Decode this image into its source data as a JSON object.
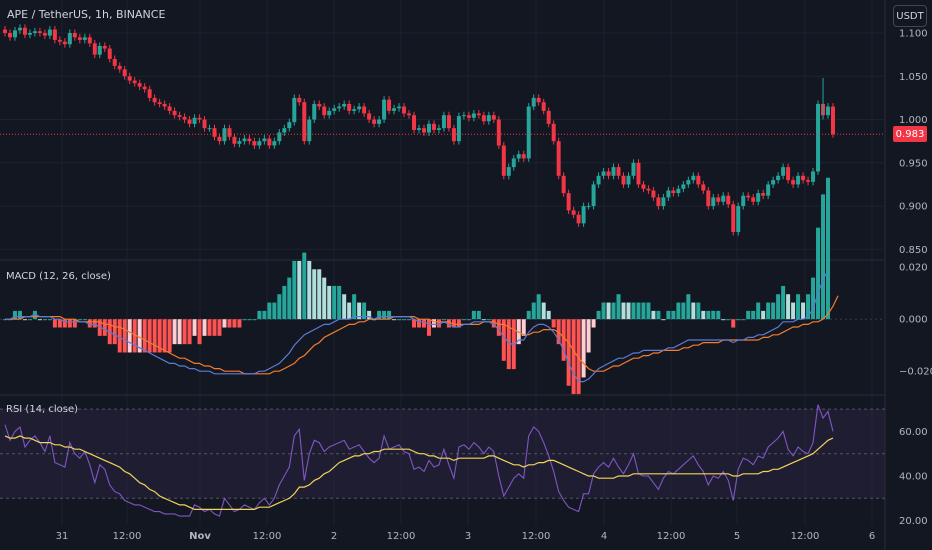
{
  "header": {
    "symbol": "APE / TetherUS, 1h, BINANCE",
    "currency_button": "USDT"
  },
  "colors": {
    "background": "#131722",
    "up": "#26a69a",
    "down": "#f23645",
    "grid": "#1e222d",
    "macd_line": "#5b7bd5",
    "signal_line": "#f57c2a",
    "hist_pos_strong": "#26a69a",
    "hist_pos_weak": "#b2dfdb",
    "hist_neg_strong": "#ff5252",
    "hist_neg_weak": "#ffcdd2",
    "rsi_line": "#7e57c2",
    "rsi_ma": "#f0d35a",
    "rsi_band": "#2a2240"
  },
  "price": {
    "current": "0.983",
    "axis_labels": [
      "1.100",
      "1.050",
      "1.000",
      "0.950",
      "0.900",
      "0.850"
    ]
  },
  "macd": {
    "title": "MACD (12, 26, close)",
    "axis_labels": [
      "0.020",
      "0.000",
      "−0.020"
    ]
  },
  "rsi": {
    "title": "RSI (14, close)",
    "axis_labels": [
      "60.00",
      "40.00",
      "20.00"
    ]
  },
  "time_axis": [
    "31",
    "12:00",
    "Nov",
    "12:00",
    "2",
    "12:00",
    "3",
    "12:00",
    "4",
    "12:00",
    "5",
    "12:00",
    "6"
  ],
  "chart_data": [
    {
      "type": "candlestick",
      "title": "APE / TetherUS, 1h, BINANCE",
      "ylim": [
        0.84,
        1.115
      ],
      "close": [
        1.1,
        1.095,
        1.103,
        1.106,
        1.098,
        1.1,
        1.102,
        1.1,
        1.097,
        1.104,
        1.092,
        1.09,
        1.087,
        1.1,
        1.095,
        1.092,
        1.095,
        1.088,
        1.075,
        1.085,
        1.082,
        1.07,
        1.062,
        1.058,
        1.05,
        1.045,
        1.042,
        1.038,
        1.035,
        1.025,
        1.02,
        1.018,
        1.015,
        1.01,
        1.005,
        1.003,
        1.0,
        0.995,
        1.002,
        1.0,
        0.99,
        0.99,
        0.98,
        0.975,
        0.99,
        0.98,
        0.972,
        0.975,
        0.978,
        0.975,
        0.97,
        0.975,
        0.978,
        0.97,
        0.975,
        0.985,
        0.99,
        0.997,
        1.025,
        1.02,
        0.975,
        1.0,
        1.018,
        1.015,
        1.005,
        1.01,
        1.013,
        1.015,
        1.018,
        1.01,
        1.012,
        1.015,
        1.007,
        1.0,
        0.995,
        1.0,
        1.023,
        1.01,
        1.013,
        1.015,
        1.007,
        1.005,
        0.988,
        0.99,
        0.985,
        0.995,
        0.988,
        0.99,
        1.005,
        0.99,
        0.975,
        1.004,
        1.005,
        1.002,
        1.007,
        1.005,
        0.998,
        1.005,
        1.0,
        0.97,
        0.935,
        0.945,
        0.955,
        0.96,
        0.955,
        1.015,
        1.025,
        1.02,
        1.01,
        0.995,
        0.975,
        0.935,
        0.915,
        0.895,
        0.89,
        0.88,
        0.9,
        0.9,
        0.925,
        0.935,
        0.94,
        0.935,
        0.945,
        0.935,
        0.925,
        0.935,
        0.95,
        0.925,
        0.92,
        0.918,
        0.91,
        0.9,
        0.91,
        0.918,
        0.915,
        0.92,
        0.925,
        0.93,
        0.935,
        0.925,
        0.918,
        0.9,
        0.91,
        0.905,
        0.912,
        0.902,
        0.87,
        0.9,
        0.912,
        0.91,
        0.905,
        0.915,
        0.912,
        0.925,
        0.93,
        0.935,
        0.945,
        0.93,
        0.925,
        0.935,
        0.93,
        0.928,
        0.94,
        1.018,
        1.005,
        1.015,
        0.983
      ]
    },
    {
      "type": "line",
      "title": "MACD (12, 26, close)",
      "ylim": [
        -0.028,
        0.022
      ],
      "series": [
        {
          "name": "MACD",
          "values": [
            0.0,
            0.0,
            0.001,
            0.001,
            0.001,
            0.001,
            0.002,
            0.001,
            0.001,
            0.001,
            0.0,
            0.0,
            -0.001,
            -0.001,
            -0.001,
            -0.001,
            -0.001,
            -0.002,
            -0.002,
            -0.003,
            -0.004,
            -0.005,
            -0.006,
            -0.007,
            -0.008,
            -0.009,
            -0.01,
            -0.011,
            -0.012,
            -0.013,
            -0.014,
            -0.015,
            -0.016,
            -0.017,
            -0.017,
            -0.018,
            -0.018,
            -0.019,
            -0.019,
            -0.02,
            -0.02,
            -0.02,
            -0.021,
            -0.021,
            -0.021,
            -0.021,
            -0.021,
            -0.021,
            -0.021,
            -0.021,
            -0.021,
            -0.02,
            -0.02,
            -0.019,
            -0.018,
            -0.017,
            -0.015,
            -0.013,
            -0.01,
            -0.008,
            -0.006,
            -0.005,
            -0.004,
            -0.003,
            -0.002,
            -0.002,
            -0.001,
            0.0,
            0.0,
            0.0,
            0.001,
            0.001,
            0.001,
            0.001,
            0.0,
            0.001,
            0.001,
            0.001,
            0.001,
            0.001,
            0.001,
            0.001,
            0.0,
            -0.001,
            -0.001,
            -0.002,
            -0.002,
            -0.002,
            -0.001,
            -0.002,
            -0.003,
            -0.003,
            -0.002,
            -0.002,
            -0.001,
            -0.001,
            -0.001,
            -0.001,
            -0.002,
            -0.004,
            -0.007,
            -0.009,
            -0.01,
            -0.008,
            -0.008,
            -0.005,
            -0.003,
            -0.002,
            -0.002,
            -0.003,
            -0.005,
            -0.008,
            -0.012,
            -0.017,
            -0.021,
            -0.024,
            -0.024,
            -0.023,
            -0.021,
            -0.019,
            -0.018,
            -0.017,
            -0.016,
            -0.015,
            -0.015,
            -0.014,
            -0.013,
            -0.013,
            -0.012,
            -0.012,
            -0.012,
            -0.012,
            -0.012,
            -0.011,
            -0.011,
            -0.01,
            -0.009,
            -0.008,
            -0.008,
            -0.008,
            -0.008,
            -0.008,
            -0.008,
            -0.008,
            -0.008,
            -0.008,
            -0.009,
            -0.008,
            -0.008,
            -0.007,
            -0.007,
            -0.006,
            -0.006,
            -0.005,
            -0.004,
            -0.003,
            -0.001,
            -0.001,
            -0.001,
            0.0,
            0.0,
            0.001,
            0.004,
            0.01,
            0.015,
            0.019
          ]
        },
        {
          "name": "Signal",
          "values": [
            0.0,
            0.0,
            0.0,
            0.0,
            0.001,
            0.001,
            0.001,
            0.001,
            0.001,
            0.001,
            0.001,
            0.001,
            0.0,
            0.0,
            0.0,
            -0.001,
            -0.001,
            -0.001,
            -0.001,
            -0.001,
            -0.002,
            -0.002,
            -0.003,
            -0.003,
            -0.004,
            -0.005,
            -0.006,
            -0.007,
            -0.008,
            -0.009,
            -0.01,
            -0.011,
            -0.012,
            -0.013,
            -0.014,
            -0.015,
            -0.015,
            -0.016,
            -0.017,
            -0.017,
            -0.018,
            -0.018,
            -0.019,
            -0.019,
            -0.02,
            -0.02,
            -0.02,
            -0.02,
            -0.021,
            -0.021,
            -0.021,
            -0.021,
            -0.021,
            -0.021,
            -0.02,
            -0.02,
            -0.019,
            -0.018,
            -0.017,
            -0.015,
            -0.014,
            -0.012,
            -0.01,
            -0.009,
            -0.007,
            -0.006,
            -0.005,
            -0.004,
            -0.003,
            -0.002,
            -0.002,
            -0.001,
            -0.001,
            0.0,
            0.0,
            0.0,
            0.0,
            0.0,
            0.001,
            0.001,
            0.001,
            0.001,
            0.001,
            0.0,
            0.0,
            0.0,
            -0.001,
            -0.001,
            -0.001,
            -0.001,
            -0.002,
            -0.002,
            -0.002,
            -0.002,
            -0.002,
            -0.002,
            -0.001,
            -0.001,
            -0.001,
            -0.002,
            -0.002,
            -0.003,
            -0.004,
            -0.005,
            -0.006,
            -0.006,
            -0.005,
            -0.005,
            -0.004,
            -0.004,
            -0.004,
            -0.005,
            -0.007,
            -0.009,
            -0.012,
            -0.015,
            -0.017,
            -0.019,
            -0.02,
            -0.02,
            -0.02,
            -0.019,
            -0.018,
            -0.018,
            -0.017,
            -0.016,
            -0.015,
            -0.015,
            -0.014,
            -0.014,
            -0.013,
            -0.013,
            -0.012,
            -0.012,
            -0.012,
            -0.012,
            -0.011,
            -0.011,
            -0.01,
            -0.01,
            -0.009,
            -0.009,
            -0.009,
            -0.009,
            -0.008,
            -0.008,
            -0.008,
            -0.008,
            -0.008,
            -0.008,
            -0.008,
            -0.008,
            -0.007,
            -0.007,
            -0.006,
            -0.006,
            -0.005,
            -0.004,
            -0.003,
            -0.003,
            -0.002,
            -0.002,
            -0.001,
            -0.001,
            0.0,
            0.002,
            0.005,
            0.009
          ]
        }
      ]
    },
    {
      "type": "line",
      "title": "RSI (14, close)",
      "ylim": [
        18,
        75
      ],
      "bands": [
        70,
        50,
        30
      ],
      "series": [
        {
          "name": "RSI",
          "values": [
            63,
            56,
            60,
            62,
            53,
            56,
            58,
            55,
            51,
            58,
            46,
            45,
            44,
            55,
            50,
            48,
            51,
            45,
            37,
            45,
            43,
            36,
            33,
            32,
            29,
            28,
            27,
            27,
            26,
            25,
            24,
            24,
            23,
            23,
            23,
            22,
            22,
            22,
            27,
            26,
            24,
            25,
            23,
            22,
            30,
            27,
            24,
            25,
            27,
            26,
            25,
            28,
            30,
            27,
            30,
            36,
            40,
            44,
            58,
            61,
            38,
            50,
            56,
            55,
            51,
            53,
            54,
            55,
            56,
            52,
            53,
            54,
            51,
            48,
            46,
            48,
            58,
            52,
            53,
            54,
            51,
            50,
            43,
            44,
            42,
            47,
            44,
            45,
            52,
            45,
            39,
            53,
            54,
            52,
            55,
            53,
            50,
            53,
            51,
            40,
            31,
            35,
            39,
            41,
            39,
            58,
            62,
            60,
            55,
            49,
            42,
            33,
            29,
            26,
            25,
            24,
            32,
            32,
            41,
            44,
            46,
            44,
            48,
            44,
            41,
            45,
            50,
            41,
            40,
            40,
            37,
            34,
            39,
            42,
            41,
            43,
            45,
            47,
            49,
            45,
            42,
            36,
            40,
            39,
            42,
            38,
            29,
            43,
            48,
            47,
            45,
            49,
            48,
            53,
            55,
            57,
            60,
            52,
            49,
            53,
            51,
            50,
            55,
            72,
            66,
            69,
            60
          ]
        },
        {
          "name": "RSI MA",
          "values": [
            58,
            57,
            57,
            58,
            57,
            57,
            56,
            55,
            55,
            55,
            54,
            54,
            53,
            53,
            52,
            52,
            51,
            50,
            49,
            48,
            47,
            46,
            45,
            44,
            42,
            41,
            39,
            37,
            36,
            34,
            33,
            31,
            30,
            29,
            28,
            27,
            27,
            26,
            25,
            25,
            25,
            25,
            25,
            25,
            25,
            25,
            25,
            25,
            25,
            25,
            25,
            26,
            26,
            26,
            27,
            28,
            29,
            30,
            32,
            35,
            35,
            36,
            38,
            39,
            41,
            42,
            44,
            46,
            47,
            48,
            49,
            49,
            50,
            50,
            51,
            51,
            52,
            52,
            52,
            52,
            52,
            52,
            51,
            50,
            50,
            49,
            49,
            48,
            48,
            48,
            47,
            48,
            48,
            48,
            48,
            48,
            48,
            49,
            49,
            48,
            47,
            46,
            45,
            45,
            44,
            45,
            45,
            46,
            46,
            47,
            47,
            46,
            45,
            44,
            43,
            42,
            41,
            40,
            40,
            39,
            39,
            39,
            39,
            40,
            40,
            40,
            41,
            41,
            41,
            41,
            41,
            41,
            41,
            41,
            41,
            41,
            41,
            41,
            41,
            41,
            41,
            41,
            41,
            41,
            41,
            41,
            40,
            40,
            41,
            41,
            41,
            41,
            42,
            42,
            43,
            43,
            44,
            45,
            46,
            47,
            48,
            49,
            50,
            52,
            54,
            56,
            57
          ]
        }
      ]
    }
  ]
}
